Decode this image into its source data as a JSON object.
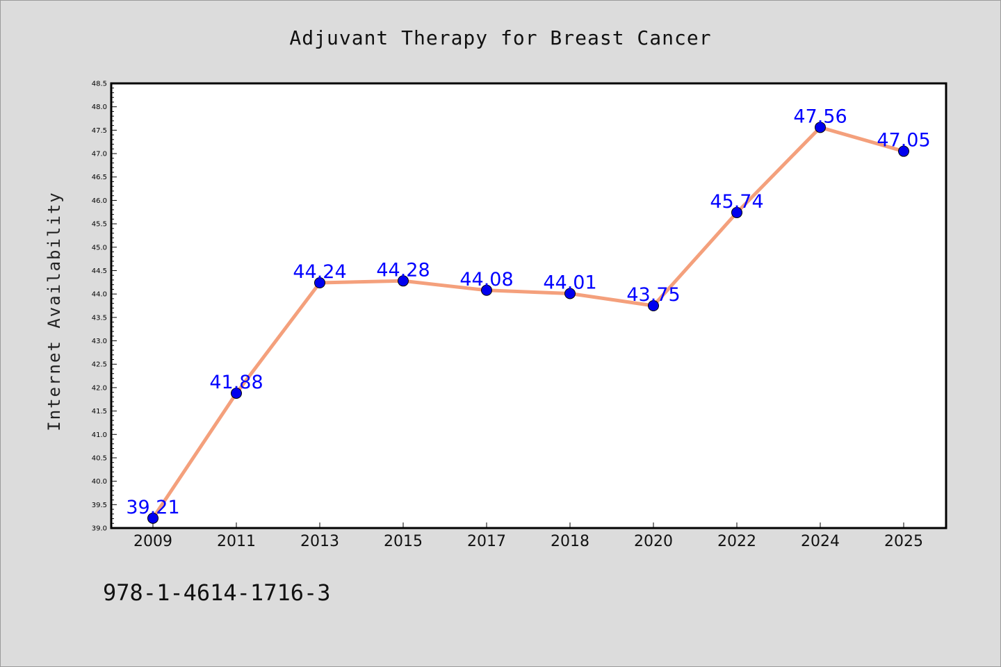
{
  "chart_data": {
    "type": "line",
    "title": "Adjuvant Therapy for Breast Cancer",
    "xlabel": "",
    "ylabel": "Internet Availability",
    "categories": [
      "2009",
      "2011",
      "2013",
      "2015",
      "2017",
      "2018",
      "2020",
      "2022",
      "2024",
      "2025"
    ],
    "series": [
      {
        "values": [
          39.21,
          41.88,
          44.24,
          44.28,
          44.08,
          44.01,
          43.75,
          45.74,
          47.56,
          47.05
        ]
      }
    ],
    "ylim": [
      39.0,
      48.5
    ],
    "ytick_step": 0.5,
    "data_labels": [
      "39.21",
      "41.88",
      "44.24",
      "44.28",
      "44.08",
      "44.01",
      "43.75",
      "45.74",
      "47.56",
      "47.05"
    ],
    "grid": false,
    "line_color": "#f4a07c",
    "marker_color": "#0000ee",
    "label_color": "#0000ff"
  },
  "footer_text": "978-1-4614-1716-3"
}
